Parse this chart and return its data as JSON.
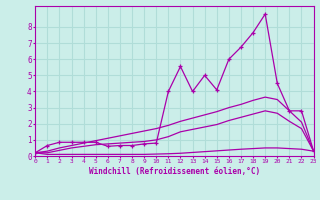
{
  "xlabel": "Windchill (Refroidissement éolien,°C)",
  "bg_color": "#cbeee9",
  "line_color": "#aa00aa",
  "grid_color": "#b0ddd8",
  "xmin": 0,
  "xmax": 23,
  "ymin": 0,
  "ymax": 9.3,
  "xticks": [
    0,
    1,
    2,
    3,
    4,
    5,
    6,
    7,
    8,
    9,
    10,
    11,
    12,
    13,
    14,
    15,
    16,
    17,
    18,
    19,
    20,
    21,
    22,
    23
  ],
  "yticks": [
    0,
    1,
    2,
    3,
    4,
    5,
    6,
    7,
    8
  ],
  "curve1_x": [
    0,
    1,
    2,
    3,
    4,
    5,
    6,
    7,
    8,
    9,
    10,
    11,
    12,
    13,
    14,
    15,
    16,
    17,
    18,
    19,
    20,
    21,
    22,
    23
  ],
  "curve1_y": [
    0.2,
    0.65,
    0.85,
    0.85,
    0.85,
    0.85,
    0.6,
    0.65,
    0.65,
    0.75,
    0.8,
    4.0,
    5.55,
    4.0,
    5.0,
    4.1,
    6.0,
    6.75,
    7.65,
    8.8,
    4.5,
    2.8,
    2.8,
    0.3
  ],
  "curve2_x": [
    0,
    1,
    2,
    3,
    4,
    5,
    6,
    7,
    8,
    9,
    10,
    11,
    12,
    13,
    14,
    15,
    16,
    17,
    18,
    19,
    20,
    21,
    22,
    23
  ],
  "curve2_y": [
    0.2,
    0.3,
    0.5,
    0.65,
    0.8,
    0.95,
    1.1,
    1.25,
    1.4,
    1.55,
    1.7,
    1.9,
    2.15,
    2.35,
    2.55,
    2.75,
    3.0,
    3.2,
    3.45,
    3.65,
    3.5,
    2.8,
    2.1,
    0.3
  ],
  "curve3_x": [
    0,
    1,
    2,
    3,
    4,
    5,
    6,
    7,
    8,
    9,
    10,
    11,
    12,
    13,
    14,
    15,
    16,
    17,
    18,
    19,
    20,
    21,
    22,
    23
  ],
  "curve3_y": [
    0.2,
    0.2,
    0.35,
    0.5,
    0.6,
    0.7,
    0.75,
    0.8,
    0.85,
    0.9,
    1.0,
    1.2,
    1.5,
    1.65,
    1.8,
    1.95,
    2.2,
    2.4,
    2.6,
    2.8,
    2.65,
    2.15,
    1.7,
    0.3
  ],
  "curve4_x": [
    0,
    1,
    2,
    3,
    4,
    5,
    6,
    7,
    8,
    9,
    10,
    11,
    12,
    13,
    14,
    15,
    16,
    17,
    18,
    19,
    20,
    21,
    22,
    23
  ],
  "curve4_y": [
    0.2,
    0.1,
    0.1,
    0.1,
    0.1,
    0.1,
    0.1,
    0.1,
    0.1,
    0.1,
    0.12,
    0.14,
    0.17,
    0.22,
    0.27,
    0.32,
    0.37,
    0.42,
    0.46,
    0.5,
    0.5,
    0.46,
    0.42,
    0.3
  ]
}
